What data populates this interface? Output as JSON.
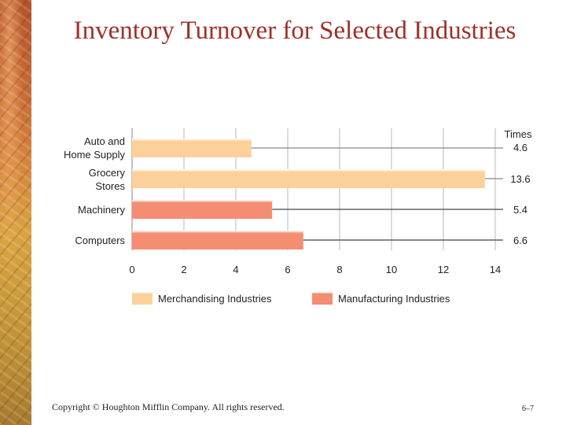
{
  "slide": {
    "title": "Inventory Turnover for Selected Industries",
    "copyright": "Copyright © Houghton Mifflin Company. All rights reserved.",
    "page_number": "6–7"
  },
  "chart_data": {
    "type": "bar",
    "orientation": "horizontal",
    "value_header": "Times",
    "categories": [
      "Auto and\nHome Supply",
      "Grocery\nStores",
      "Machinery",
      "Computers"
    ],
    "values": [
      4.6,
      13.6,
      5.4,
      6.6
    ],
    "value_labels": [
      "4.6",
      "13.6",
      "5.4",
      "6.6"
    ],
    "category_series": [
      "Merchandising Industries",
      "Merchandising Industries",
      "Manufacturing Industries",
      "Manufacturing Industries"
    ],
    "series": [
      {
        "name": "Merchandising Industries",
        "color": "#fcd199"
      },
      {
        "name": "Manufacturing Industries",
        "color": "#f58d72"
      }
    ],
    "xlim": [
      0,
      14
    ],
    "xticks": [
      0,
      2,
      4,
      6,
      8,
      10,
      12,
      14
    ],
    "grid": true,
    "legend_position": "bottom"
  }
}
